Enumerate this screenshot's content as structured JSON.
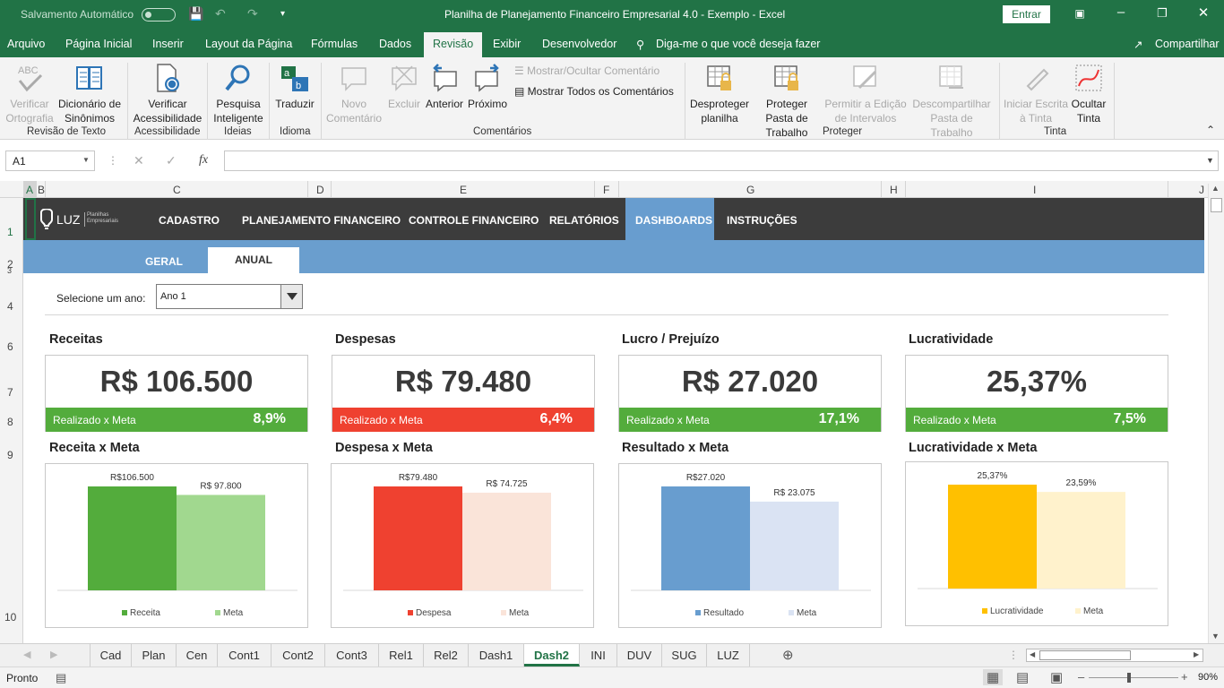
{
  "titlebar": {
    "autosave_label": "Salvamento Automático",
    "window_title": "Planilha de Planejamento Financeiro Empresarial 4.0 - Exemplo  -  Excel",
    "signin_label": "Entrar"
  },
  "menu": {
    "items": [
      "Arquivo",
      "Página Inicial",
      "Inserir",
      "Layout da Página",
      "Fórmulas",
      "Dados",
      "Revisão",
      "Exibir",
      "Desenvolvedor"
    ],
    "tellme": "Diga-me o que você deseja fazer",
    "share": "Compartilhar"
  },
  "ribbon": {
    "verificar_ortografia": "Verificar Ortografia",
    "dicionario": "Dicionário de Sinônimos",
    "grp_revisao": "Revisão de Texto",
    "verificar_acess": "Verificar Acessibilidade",
    "grp_acess": "Acessibilidade",
    "pesquisa": "Pesquisa Inteligente",
    "grp_ideias": "Ideias",
    "traduzir": "Traduzir",
    "grp_idioma": "Idioma",
    "novo_comentario": "Novo Comentário",
    "excluir": "Excluir",
    "anterior": "Anterior",
    "proximo": "Próximo",
    "mostrar_ocultar": "Mostrar/Ocultar Comentário",
    "mostrar_todos": "Mostrar Todos os Comentários",
    "grp_comentarios": "Comentários",
    "desproteger": "Desproteger planilha",
    "proteger_pasta": "Proteger Pasta de Trabalho",
    "permitir_edicao": "Permitir a Edição de Intervalos",
    "descompartilhar": "Descompartilhar Pasta de Trabalho",
    "grp_proteger": "Proteger",
    "iniciar_escrita": "Iniciar Escrita à Tinta",
    "ocultar_tinta": "Ocultar Tinta",
    "grp_tinta": "Tinta"
  },
  "formula": {
    "namebox": "A1",
    "fx": "fx",
    "value": ""
  },
  "columns": [
    "A",
    "B",
    "C",
    "D",
    "E",
    "F",
    "G",
    "H",
    "I",
    "J"
  ],
  "rows": [
    "1",
    "2",
    "3",
    "4",
    "6",
    "7",
    "8",
    "9",
    "10"
  ],
  "dash": {
    "logo": "LUZ",
    "logo_sub": "Planilhas Empresariais",
    "nav": [
      "CADASTRO",
      "PLANEJAMENTO FINANCEIRO",
      "CONTROLE FINANCEIRO",
      "RELATÓRIOS",
      "DASHBOARDS",
      "INSTRUÇÕES"
    ],
    "subtabs": [
      "GERAL",
      "ANUAL"
    ],
    "year_label": "Selecione um ano:",
    "year_value": "Ano 1",
    "kpis": [
      {
        "title": "Receitas",
        "value": "R$ 106.500",
        "bar_label": "Realizado x Meta",
        "pct": "8,9%",
        "color": "#53ac3c"
      },
      {
        "title": "Despesas",
        "value": "R$ 79.480",
        "bar_label": "Realizado x Meta",
        "pct": "6,4%",
        "color": "#ef4130"
      },
      {
        "title": "Lucro / Prejuízo",
        "value": "R$ 27.020",
        "bar_label": "Realizado x Meta",
        "pct": "17,1%",
        "color": "#53ac3c"
      },
      {
        "title": "Lucratividade",
        "value": "25,37%",
        "bar_label": "Realizado x Meta",
        "pct": "7,5%",
        "color": "#53ac3c"
      }
    ],
    "chart_titles": [
      "Receita x Meta",
      "Despesa x Meta",
      "Resultado x Meta",
      "Lucratividade x Meta"
    ]
  },
  "chart_data": [
    {
      "type": "bar",
      "categories": [
        "Receita",
        "Meta"
      ],
      "values": [
        106500,
        97800
      ],
      "labels": [
        "R$106.500",
        "R$ 97.800"
      ],
      "colors": [
        "#53ac3c",
        "#a1d88f"
      ],
      "title": "Receita x Meta"
    },
    {
      "type": "bar",
      "categories": [
        "Despesa",
        "Meta"
      ],
      "values": [
        79480,
        74725
      ],
      "labels": [
        "R$79.480",
        "R$ 74.725"
      ],
      "colors": [
        "#ef4130",
        "#fae4d9"
      ],
      "title": "Despesa x Meta"
    },
    {
      "type": "bar",
      "categories": [
        "Resultado",
        "Meta"
      ],
      "values": [
        27020,
        23075
      ],
      "labels": [
        "R$27.020",
        "R$ 23.075"
      ],
      "colors": [
        "#689dcf",
        "#dae3f3"
      ],
      "title": "Resultado x Meta"
    },
    {
      "type": "bar",
      "categories": [
        "Lucratividade",
        "Meta"
      ],
      "values": [
        25.37,
        23.59
      ],
      "labels": [
        "25,37%",
        "23,59%"
      ],
      "colors": [
        "#ffc000",
        "#fff2cc"
      ],
      "title": "Lucratividade x Meta"
    }
  ],
  "sheets": [
    "Cad",
    "Plan",
    "Cen",
    "Cont1",
    "Cont2",
    "Cont3",
    "Rel1",
    "Rel2",
    "Dash1",
    "Dash2",
    "INI",
    "DUV",
    "SUG",
    "LUZ"
  ],
  "active_sheet": "Dash2",
  "status": {
    "ready": "Pronto",
    "zoom": "90%"
  }
}
